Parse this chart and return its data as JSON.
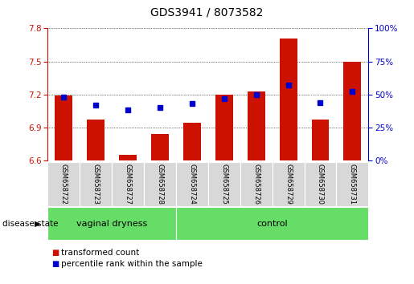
{
  "title": "GDS3941 / 8073582",
  "samples": [
    "GSM658722",
    "GSM658723",
    "GSM658727",
    "GSM658728",
    "GSM658724",
    "GSM658725",
    "GSM658726",
    "GSM658729",
    "GSM658730",
    "GSM658731"
  ],
  "bar_values": [
    7.19,
    6.97,
    6.65,
    6.84,
    6.94,
    7.2,
    7.23,
    7.71,
    6.97,
    7.5
  ],
  "percentile_values": [
    48,
    42,
    38,
    40,
    43,
    47,
    50,
    57,
    44,
    52
  ],
  "ylim_left": [
    6.6,
    7.8
  ],
  "ylim_right": [
    0,
    100
  ],
  "yticks_left": [
    6.6,
    6.9,
    7.2,
    7.5,
    7.8
  ],
  "yticks_right": [
    0,
    25,
    50,
    75,
    100
  ],
  "bar_color": "#cc1100",
  "marker_color": "#0000cc",
  "group1_label": "vaginal dryness",
  "group1_count": 4,
  "group2_label": "control",
  "group2_count": 6,
  "group_color": "#66dd66",
  "tick_color_left": "#cc1100",
  "tick_color_right": "#0000cc",
  "legend_bar_label": "transformed count",
  "legend_marker_label": "percentile rank within the sample",
  "disease_state_label": "disease state",
  "background_color": "#ffffff",
  "bar_width": 0.55,
  "bar_base": 6.6
}
